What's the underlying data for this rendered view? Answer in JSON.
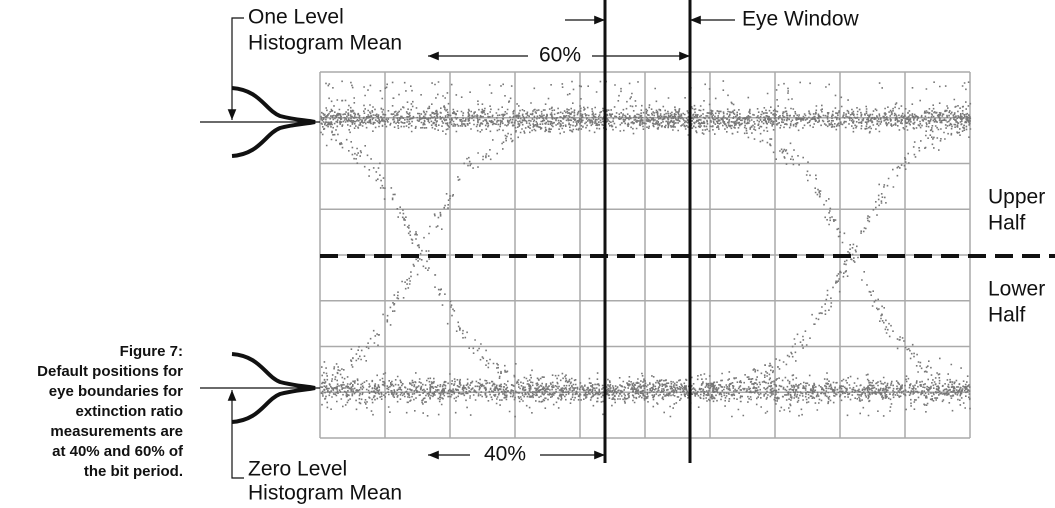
{
  "labels": {
    "one_level": [
      "One Level",
      "Histogram Mean"
    ],
    "zero_level": [
      "Zero Level",
      "Histogram Mean"
    ],
    "window_60": "60%",
    "window_40": "40%",
    "eye_window": "Eye Window",
    "upper_half": [
      "Upper",
      "Half"
    ],
    "lower_half": [
      "Lower",
      "Half"
    ]
  },
  "caption": {
    "title": "Figure 7:",
    "lines": [
      "Default positions for",
      "eye boundaries for",
      "extinction ratio",
      "measurements are",
      "at 40% and 60% of",
      "the bit period."
    ]
  }
}
